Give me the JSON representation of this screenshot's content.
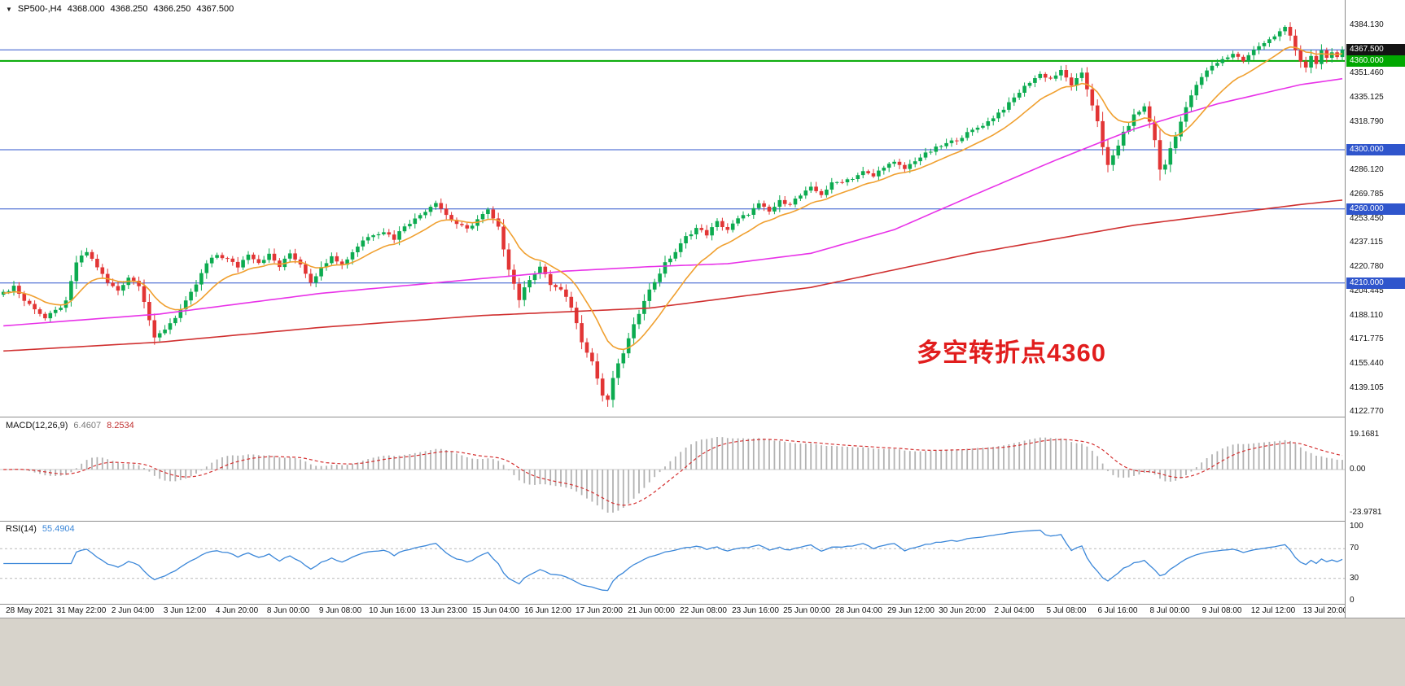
{
  "header": {
    "collapse_icon": "▼",
    "symbol_period": "SP500-,H4",
    "open": "4368.000",
    "high": "4368.250",
    "low": "4366.250",
    "close": "4367.500"
  },
  "annotation": {
    "text": "多空转折点4360",
    "color": "#e11d1d"
  },
  "macd_panel": {
    "title": "MACD(12,26,9)",
    "value_main": "6.4607",
    "value_signal": "8.2534"
  },
  "rsi_panel": {
    "title": "RSI(14)",
    "value": "55.4904"
  },
  "chart_data": {
    "type": "candlestick",
    "symbol": "SP500-",
    "timeframe": "H4",
    "candle_count": 258,
    "last_close": 4367.5,
    "close_waypoints": [
      [
        0,
        4203
      ],
      [
        2,
        4208
      ],
      [
        4,
        4198
      ],
      [
        6,
        4193
      ],
      [
        8,
        4186
      ],
      [
        10,
        4191
      ],
      [
        12,
        4197
      ],
      [
        14,
        4224
      ],
      [
        16,
        4231
      ],
      [
        18,
        4221
      ],
      [
        20,
        4210
      ],
      [
        22,
        4205
      ],
      [
        24,
        4214
      ],
      [
        26,
        4209
      ],
      [
        27,
        4198
      ],
      [
        29,
        4172
      ],
      [
        31,
        4179
      ],
      [
        33,
        4187
      ],
      [
        35,
        4197
      ],
      [
        37,
        4209
      ],
      [
        39,
        4223
      ],
      [
        41,
        4229
      ],
      [
        43,
        4226
      ],
      [
        45,
        4221
      ],
      [
        47,
        4230
      ],
      [
        49,
        4224
      ],
      [
        51,
        4229
      ],
      [
        53,
        4221
      ],
      [
        55,
        4230
      ],
      [
        57,
        4223
      ],
      [
        59,
        4211
      ],
      [
        61,
        4220
      ],
      [
        63,
        4229
      ],
      [
        65,
        4222
      ],
      [
        67,
        4231
      ],
      [
        69,
        4239
      ],
      [
        71,
        4243
      ],
      [
        73,
        4245
      ],
      [
        75,
        4240
      ],
      [
        77,
        4249
      ],
      [
        79,
        4253
      ],
      [
        81,
        4259
      ],
      [
        83,
        4265
      ],
      [
        85,
        4256
      ],
      [
        87,
        4250
      ],
      [
        89,
        4246
      ],
      [
        91,
        4253
      ],
      [
        93,
        4259
      ],
      [
        95,
        4247
      ],
      [
        97,
        4220
      ],
      [
        99,
        4199
      ],
      [
        101,
        4213
      ],
      [
        103,
        4221
      ],
      [
        105,
        4209
      ],
      [
        107,
        4205
      ],
      [
        109,
        4194
      ],
      [
        111,
        4171
      ],
      [
        113,
        4157
      ],
      [
        115,
        4134
      ],
      [
        116,
        4130
      ],
      [
        117,
        4146
      ],
      [
        119,
        4163
      ],
      [
        121,
        4181
      ],
      [
        123,
        4199
      ],
      [
        125,
        4211
      ],
      [
        127,
        4223
      ],
      [
        129,
        4231
      ],
      [
        131,
        4241
      ],
      [
        133,
        4247
      ],
      [
        135,
        4243
      ],
      [
        137,
        4251
      ],
      [
        139,
        4246
      ],
      [
        141,
        4253
      ],
      [
        143,
        4257
      ],
      [
        145,
        4263
      ],
      [
        147,
        4258
      ],
      [
        149,
        4265
      ],
      [
        151,
        4264
      ],
      [
        153,
        4269
      ],
      [
        155,
        4274
      ],
      [
        157,
        4270
      ],
      [
        159,
        4277
      ],
      [
        161,
        4279
      ],
      [
        163,
        4281
      ],
      [
        165,
        4285
      ],
      [
        167,
        4282
      ],
      [
        169,
        4289
      ],
      [
        171,
        4291
      ],
      [
        173,
        4287
      ],
      [
        175,
        4293
      ],
      [
        177,
        4297
      ],
      [
        179,
        4301
      ],
      [
        181,
        4304
      ],
      [
        183,
        4307
      ],
      [
        185,
        4311
      ],
      [
        187,
        4315
      ],
      [
        189,
        4319
      ],
      [
        191,
        4325
      ],
      [
        193,
        4331
      ],
      [
        195,
        4339
      ],
      [
        197,
        4346
      ],
      [
        199,
        4351
      ],
      [
        201,
        4348
      ],
      [
        203,
        4353
      ],
      [
        205,
        4344
      ],
      [
        207,
        4351
      ],
      [
        208,
        4341
      ],
      [
        210,
        4320
      ],
      [
        211,
        4301
      ],
      [
        212,
        4289
      ],
      [
        213,
        4296
      ],
      [
        215,
        4311
      ],
      [
        217,
        4323
      ],
      [
        219,
        4329
      ],
      [
        220,
        4319
      ],
      [
        221,
        4307
      ],
      [
        222,
        4286
      ],
      [
        223,
        4290
      ],
      [
        224,
        4301
      ],
      [
        226,
        4319
      ],
      [
        228,
        4337
      ],
      [
        230,
        4349
      ],
      [
        232,
        4357
      ],
      [
        234,
        4361
      ],
      [
        236,
        4365
      ],
      [
        238,
        4360
      ],
      [
        240,
        4367
      ],
      [
        242,
        4373
      ],
      [
        244,
        4377
      ],
      [
        246,
        4382
      ],
      [
        247,
        4377
      ],
      [
        248,
        4367
      ],
      [
        249,
        4359
      ],
      [
        250,
        4356
      ],
      [
        251,
        4363
      ],
      [
        252,
        4359
      ],
      [
        253,
        4366
      ],
      [
        254,
        4361
      ],
      [
        255,
        4365
      ],
      [
        256,
        4363
      ],
      [
        257,
        4367.5
      ]
    ],
    "extremes": {
      "high_index": 246,
      "high": 4384.13,
      "low_index": 116,
      "low": 4126.3
    },
    "ma_fast": {
      "type": "ema",
      "period": 13,
      "seed": 4203
    },
    "ma_mid_waypoints": [
      [
        0,
        4181
      ],
      [
        30,
        4189
      ],
      [
        61,
        4203
      ],
      [
        92,
        4213
      ],
      [
        108,
        4218
      ],
      [
        124,
        4221
      ],
      [
        139,
        4223
      ],
      [
        155,
        4230
      ],
      [
        171,
        4246
      ],
      [
        186,
        4269
      ],
      [
        202,
        4293
      ],
      [
        217,
        4314
      ],
      [
        233,
        4331
      ],
      [
        249,
        4344
      ],
      [
        257,
        4348
      ]
    ],
    "ma_slow_waypoints": [
      [
        0,
        4164
      ],
      [
        30,
        4170
      ],
      [
        61,
        4180
      ],
      [
        92,
        4188
      ],
      [
        124,
        4193
      ],
      [
        155,
        4207
      ],
      [
        186,
        4230
      ],
      [
        217,
        4249
      ],
      [
        249,
        4263
      ],
      [
        257,
        4266
      ]
    ],
    "macd": {
      "fast": 12,
      "slow": 26,
      "signal": 9,
      "ticks": [
        {
          "v": 19.1681,
          "label": "19.1681"
        },
        {
          "v": 0,
          "label": "0.00"
        },
        {
          "v": -23.9781,
          "label": "-23.9781"
        }
      ]
    },
    "rsi": {
      "period": 14,
      "levels": [
        70,
        30
      ],
      "ticks": [
        {
          "v": 100,
          "label": "100"
        },
        {
          "v": 70,
          "label": "70"
        },
        {
          "v": 30,
          "label": "30"
        },
        {
          "v": 0,
          "label": "0"
        }
      ]
    },
    "price_ticks": [
      4384.13,
      4351.46,
      4335.125,
      4318.79,
      4286.12,
      4269.785,
      4253.45,
      4237.115,
      4220.78,
      4204.445,
      4188.11,
      4171.775,
      4155.44,
      4139.105,
      4122.77
    ],
    "levels": [
      {
        "value": 4367.5,
        "label": "4367.500",
        "line": "#2f55cc",
        "box": "#141414",
        "width": 1
      },
      {
        "value": 4360,
        "label": "4360.000",
        "line": "#00a800",
        "box": "#00a800",
        "width": 2
      },
      {
        "value": 4300,
        "label": "4300.000",
        "line": "#2f55cc",
        "box": "#2f55cc",
        "width": 1
      },
      {
        "value": 4260,
        "label": "4260.000",
        "line": "#2f55cc",
        "box": "#2f55cc",
        "width": 1
      },
      {
        "value": 4210,
        "label": "4210.000",
        "line": "#2f55cc",
        "box": "#2f55cc",
        "width": 1
      }
    ],
    "time_labels": [
      "28 May 2021",
      "31 May 22:00",
      "2 Jun 04:00",
      "3 Jun 12:00",
      "4 Jun 20:00",
      "8 Jun 00:00",
      "9 Jun 08:00",
      "10 Jun 16:00",
      "13 Jun 23:00",
      "15 Jun 04:00",
      "16 Jun 12:00",
      "17 Jun 20:00",
      "21 Jun 00:00",
      "22 Jun 08:00",
      "23 Jun 16:00",
      "25 Jun 00:00",
      "28 Jun 04:00",
      "29 Jun 12:00",
      "30 Jun 20:00",
      "2 Jul 04:00",
      "5 Jul 08:00",
      "6 Jul 16:00",
      "8 Jul 00:00",
      "9 Jul 08:00",
      "12 Jul 12:00",
      "13 Jul 20:00"
    ]
  },
  "colors": {
    "up": "#0cab50",
    "down": "#e23535",
    "ma_fast": "#f0a030",
    "ma_mid": "#e832e8",
    "ma_slow": "#d03030",
    "macd_hist": "#b2b2b2",
    "macd_signal": "#d43030",
    "rsi_line": "#3b87d9",
    "level_blue": "#2f55cc",
    "level_green": "#00a800",
    "background": "#ffffff",
    "bottom_strip": "#d7d3cb"
  }
}
